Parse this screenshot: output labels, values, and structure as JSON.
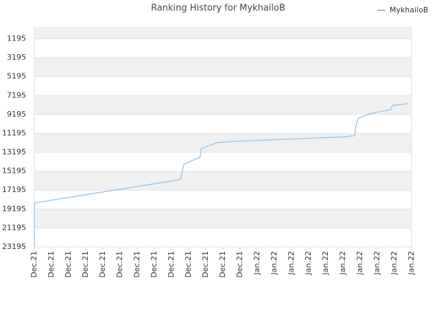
{
  "chart_data": {
    "type": "line",
    "title": "Ranking History for MykhailoB",
    "series": [
      {
        "name": "MykhailoB",
        "color": "#8ec3ec",
        "x": [
          0,
          0,
          0.04,
          8.52,
          8.72,
          9.68,
          9.72,
          10.68,
          12,
          14,
          16,
          18,
          18.68,
          18.72,
          18.88,
          19.6,
          20.8,
          20.88,
          21.72,
          21.76
        ],
        "values": [
          23195,
          19195,
          18540,
          16075,
          14476,
          13677,
          12806,
          12153,
          12008,
          11863,
          11717,
          11572,
          11427,
          10700,
          9612,
          9104,
          8668,
          8232,
          8087,
          7942
        ]
      }
    ],
    "xlim": [
      0,
      22
    ],
    "xticks": [
      {
        "value": 0,
        "label": "Dec.21"
      },
      {
        "value": 1,
        "label": "Dec.21"
      },
      {
        "value": 2,
        "label": "Dec.21"
      },
      {
        "value": 3,
        "label": "Dec.21"
      },
      {
        "value": 4,
        "label": "Dec.21"
      },
      {
        "value": 5,
        "label": "Dec.21"
      },
      {
        "value": 6,
        "label": "Dec.21"
      },
      {
        "value": 7,
        "label": "Dec.21"
      },
      {
        "value": 8,
        "label": "Dec.21"
      },
      {
        "value": 9,
        "label": "Dec.21"
      },
      {
        "value": 10,
        "label": "Dec.21"
      },
      {
        "value": 11,
        "label": "Dec.21"
      },
      {
        "value": 12,
        "label": "Dec.21"
      },
      {
        "value": 13,
        "label": "Jan.22"
      },
      {
        "value": 14,
        "label": "Jan.22"
      },
      {
        "value": 15,
        "label": "Jan.22"
      },
      {
        "value": 16,
        "label": "Jan.22"
      },
      {
        "value": 17,
        "label": "Jan.22"
      },
      {
        "value": 18,
        "label": "Jan.22"
      },
      {
        "value": 19,
        "label": "Jan.22"
      },
      {
        "value": 20,
        "label": "Jan.22"
      },
      {
        "value": 21,
        "label": "Jan.22"
      },
      {
        "value": 22,
        "label": "Jan.22"
      }
    ],
    "ylim": [
      23195,
      0
    ],
    "yticks": [
      1195,
      3195,
      5195,
      7195,
      9195,
      11195,
      13195,
      15195,
      17195,
      19195,
      21195,
      23195
    ],
    "grid": true,
    "legend": "top-right"
  }
}
